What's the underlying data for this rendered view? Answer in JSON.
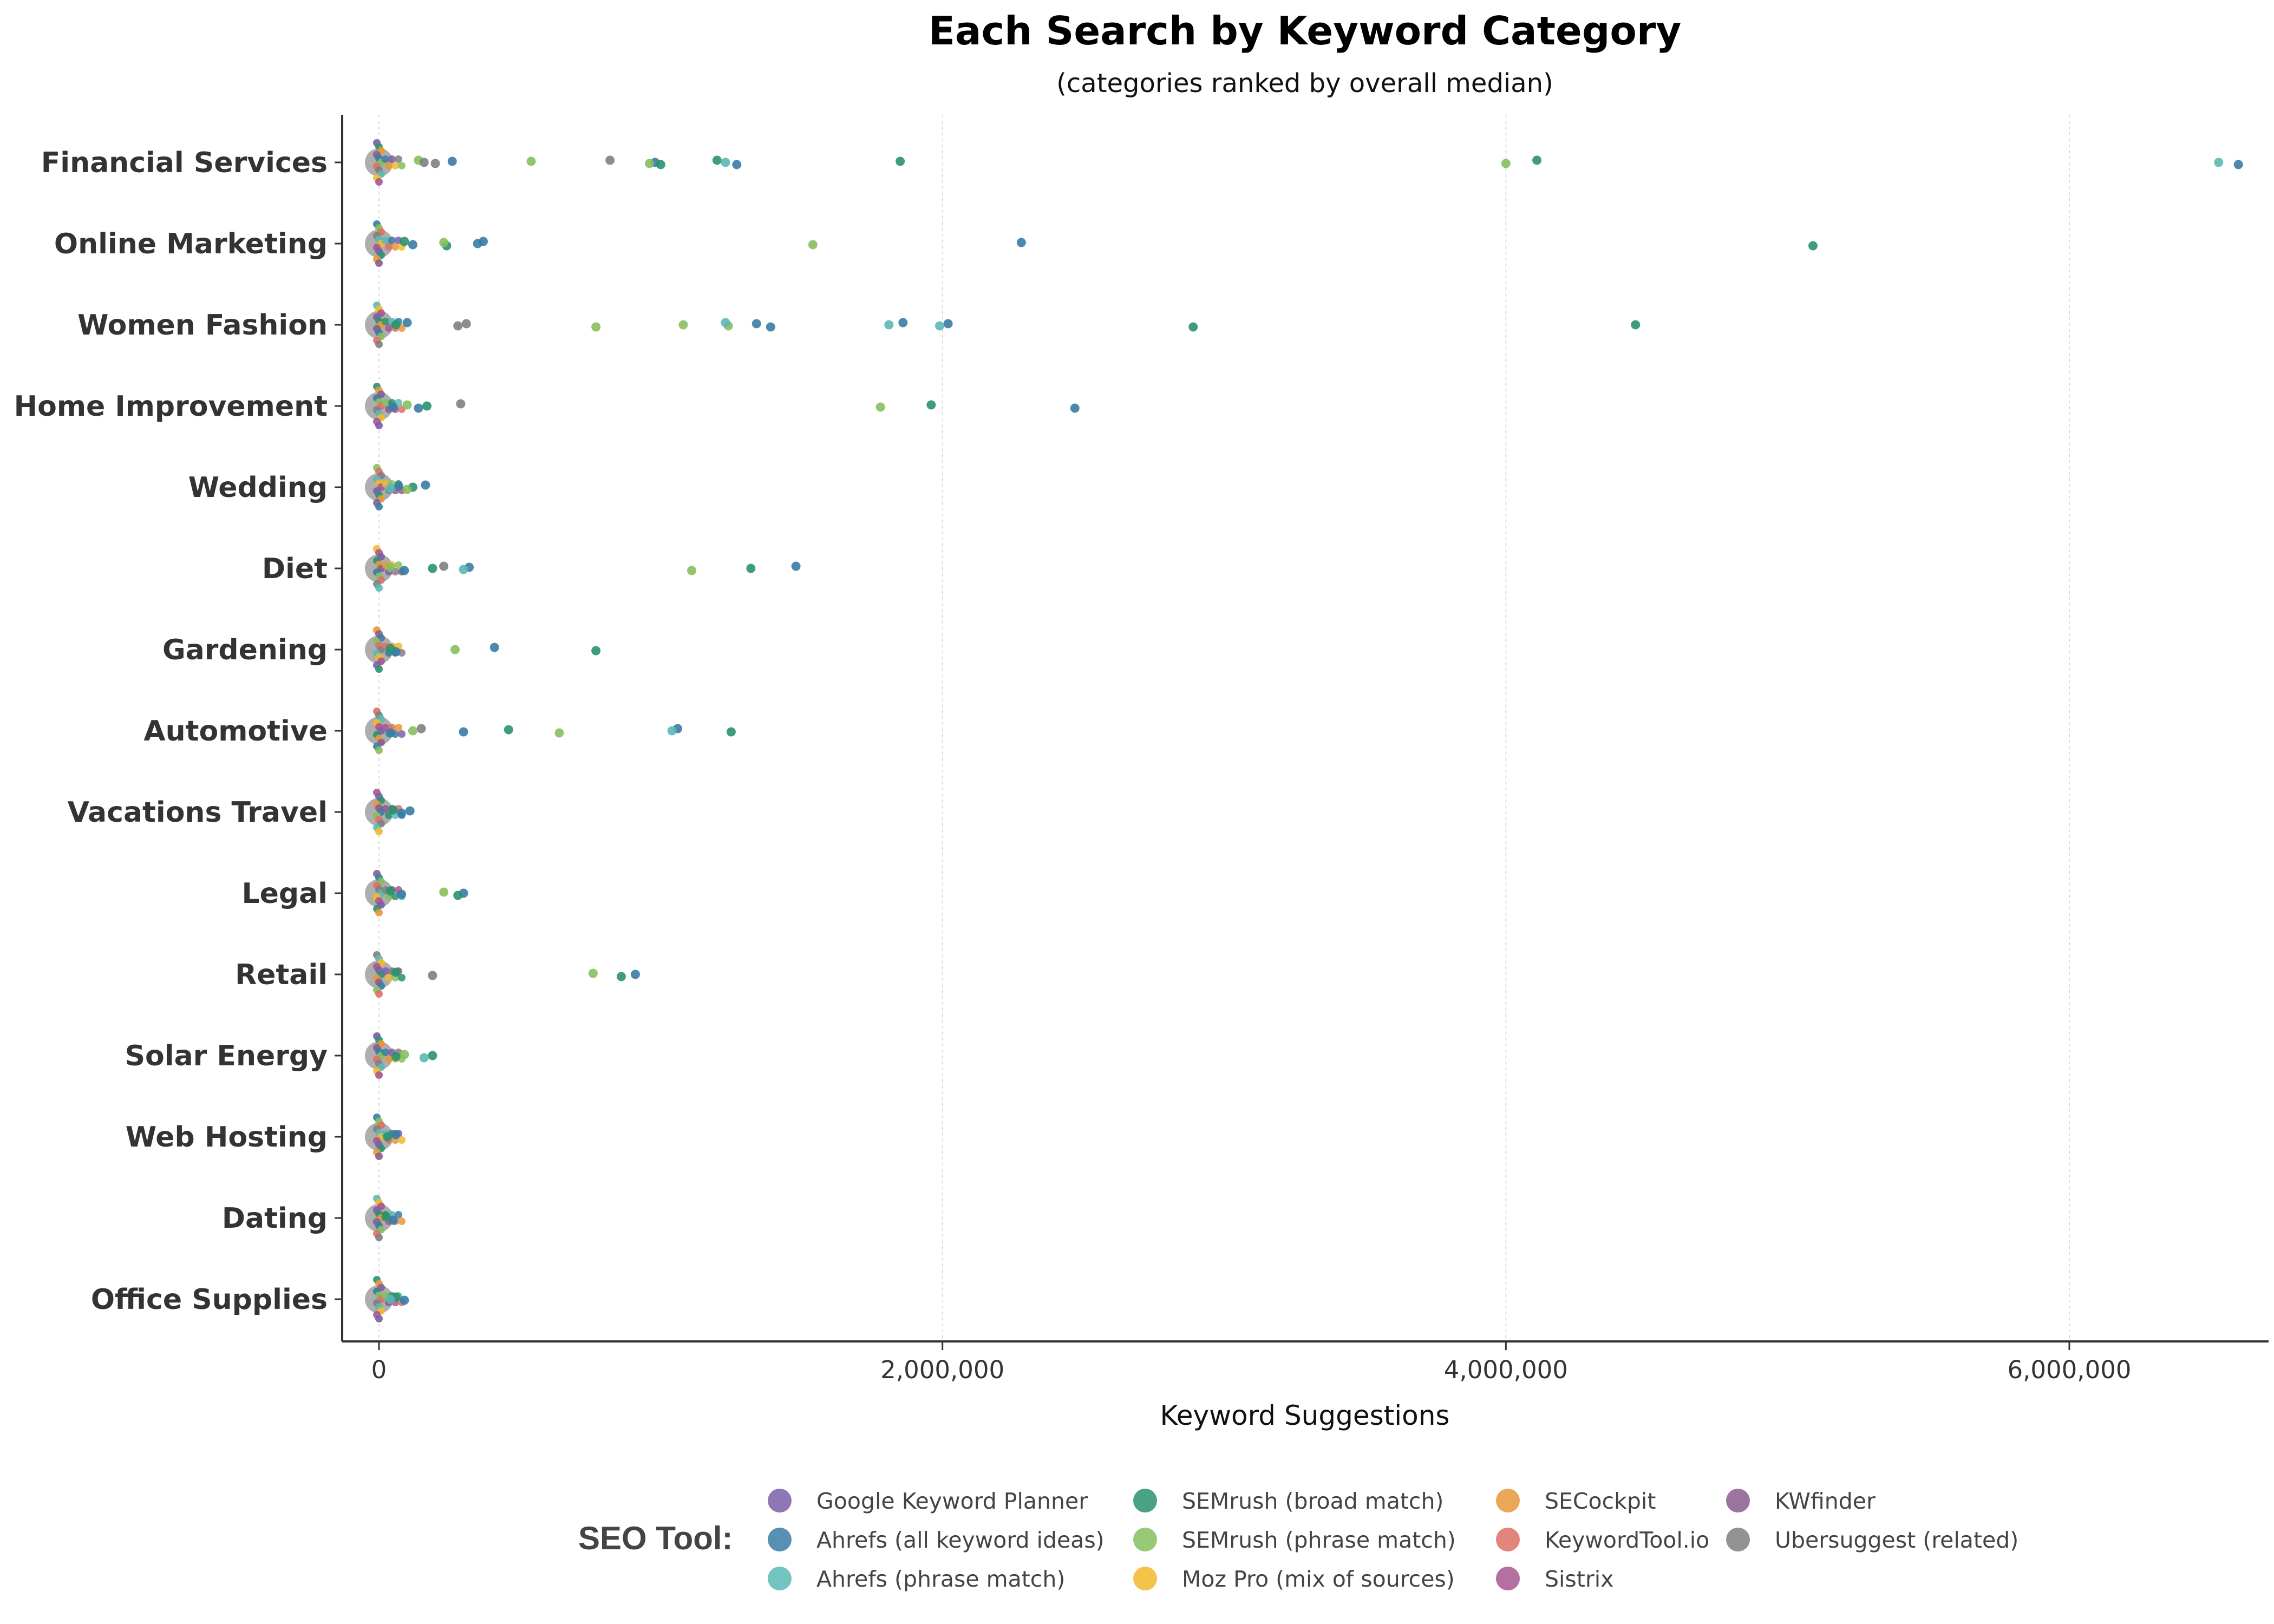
{
  "chart_data": {
    "type": "scatter",
    "title": "Each Search by Keyword Category",
    "subtitle": "(categories ranked by overall median)",
    "xlabel": "Keyword Suggestions",
    "ylabel": "",
    "xlim": [
      -80000,
      6800000
    ],
    "x_ticks": [
      {
        "value": 0,
        "label": "0"
      },
      {
        "value": 2000000,
        "label": "2,000,000"
      },
      {
        "value": 4000000,
        "label": "4,000,000"
      },
      {
        "value": 6000000,
        "label": "6,000,000"
      }
    ],
    "grid": "vertical major lines (dotted)",
    "legend": {
      "title": "SEO Tool:",
      "placement": "bottom",
      "entries": [
        {
          "name": "Google Keyword Planner",
          "color": "#7b5ea7"
        },
        {
          "name": "Ahrefs (all keyword ideas)",
          "color": "#3a7ca5"
        },
        {
          "name": "Ahrefs (phrase match)",
          "color": "#5bb8b5"
        },
        {
          "name": "SEMrush (broad match)",
          "color": "#2a9270"
        },
        {
          "name": "SEMrush (phrase match)",
          "color": "#86bf5e"
        },
        {
          "name": "Moz Pro (mix of sources)",
          "color": "#f2b92b"
        },
        {
          "name": "SECockpit",
          "color": "#e8983b"
        },
        {
          "name": "KeywordTool.io",
          "color": "#dd7166"
        },
        {
          "name": "Sistrix",
          "color": "#a7578f"
        },
        {
          "name": "KWfinder",
          "color": "#8a5d8e"
        },
        {
          "name": "Ubersuggest (related)",
          "color": "#808080"
        }
      ]
    },
    "categories": [
      "Financial Services",
      "Online Marketing",
      "Women Fashion",
      "Home Improvement",
      "Wedding",
      "Diet",
      "Gardening",
      "Automotive",
      "Vacations Travel",
      "Legal",
      "Retail",
      "Solar Energy",
      "Web Hosting",
      "Dating",
      "Office Supplies"
    ],
    "median_marker_color": "#a0a0a0",
    "points": [
      {
        "category": "Financial Services",
        "tool": 10,
        "x": 820000
      },
      {
        "category": "Financial Services",
        "tool": 1,
        "x": 980000
      },
      {
        "category": "Financial Services",
        "tool": 3,
        "x": 1000000
      },
      {
        "category": "Financial Services",
        "tool": 4,
        "x": 540000
      },
      {
        "category": "Financial Services",
        "tool": 4,
        "x": 960000
      },
      {
        "category": "Financial Services",
        "tool": 3,
        "x": 1200000
      },
      {
        "category": "Financial Services",
        "tool": 2,
        "x": 1230000
      },
      {
        "category": "Financial Services",
        "tool": 1,
        "x": 1270000
      },
      {
        "category": "Financial Services",
        "tool": 3,
        "x": 1850000
      },
      {
        "category": "Financial Services",
        "tool": 4,
        "x": 4000000
      },
      {
        "category": "Financial Services",
        "tool": 3,
        "x": 4110000
      },
      {
        "category": "Financial Services",
        "tool": 2,
        "x": 6530000
      },
      {
        "category": "Financial Services",
        "tool": 1,
        "x": 6600000
      },
      {
        "category": "Financial Services",
        "tool": 1,
        "x": 260000
      },
      {
        "category": "Financial Services",
        "tool": 10,
        "x": 200000
      },
      {
        "category": "Financial Services",
        "tool": 4,
        "x": 140000
      },
      {
        "category": "Financial Services",
        "tool": 10,
        "x": 160000
      },
      {
        "category": "Online Marketing",
        "tool": 3,
        "x": 5090000
      },
      {
        "category": "Online Marketing",
        "tool": 1,
        "x": 2280000
      },
      {
        "category": "Online Marketing",
        "tool": 4,
        "x": 1540000
      },
      {
        "category": "Online Marketing",
        "tool": 1,
        "x": 370000
      },
      {
        "category": "Online Marketing",
        "tool": 1,
        "x": 350000
      },
      {
        "category": "Online Marketing",
        "tool": 3,
        "x": 240000
      },
      {
        "category": "Online Marketing",
        "tool": 4,
        "x": 230000
      },
      {
        "category": "Online Marketing",
        "tool": 1,
        "x": 120000
      },
      {
        "category": "Online Marketing",
        "tool": 3,
        "x": 90000
      },
      {
        "category": "Women Fashion",
        "tool": 3,
        "x": 4460000
      },
      {
        "category": "Women Fashion",
        "tool": 3,
        "x": 2890000
      },
      {
        "category": "Women Fashion",
        "tool": 1,
        "x": 2020000
      },
      {
        "category": "Women Fashion",
        "tool": 2,
        "x": 1990000
      },
      {
        "category": "Women Fashion",
        "tool": 1,
        "x": 1860000
      },
      {
        "category": "Women Fashion",
        "tool": 2,
        "x": 1810000
      },
      {
        "category": "Women Fashion",
        "tool": 1,
        "x": 1390000
      },
      {
        "category": "Women Fashion",
        "tool": 1,
        "x": 1340000
      },
      {
        "category": "Women Fashion",
        "tool": 4,
        "x": 1240000
      },
      {
        "category": "Women Fashion",
        "tool": 2,
        "x": 1230000
      },
      {
        "category": "Women Fashion",
        "tool": 4,
        "x": 1080000
      },
      {
        "category": "Women Fashion",
        "tool": 4,
        "x": 770000
      },
      {
        "category": "Women Fashion",
        "tool": 10,
        "x": 310000
      },
      {
        "category": "Women Fashion",
        "tool": 10,
        "x": 280000
      },
      {
        "category": "Women Fashion",
        "tool": 1,
        "x": 100000
      },
      {
        "category": "Women Fashion",
        "tool": 3,
        "x": 60000
      },
      {
        "category": "Home Improvement",
        "tool": 1,
        "x": 2470000
      },
      {
        "category": "Home Improvement",
        "tool": 3,
        "x": 1960000
      },
      {
        "category": "Home Improvement",
        "tool": 4,
        "x": 1780000
      },
      {
        "category": "Home Improvement",
        "tool": 10,
        "x": 290000
      },
      {
        "category": "Home Improvement",
        "tool": 3,
        "x": 170000
      },
      {
        "category": "Home Improvement",
        "tool": 1,
        "x": 140000
      },
      {
        "category": "Home Improvement",
        "tool": 4,
        "x": 100000
      },
      {
        "category": "Home Improvement",
        "tool": 1,
        "x": 50000
      },
      {
        "category": "Wedding",
        "tool": 1,
        "x": 165000
      },
      {
        "category": "Wedding",
        "tool": 3,
        "x": 120000
      },
      {
        "category": "Wedding",
        "tool": 4,
        "x": 100000
      },
      {
        "category": "Wedding",
        "tool": 1,
        "x": 70000
      },
      {
        "category": "Wedding",
        "tool": 2,
        "x": 40000
      },
      {
        "category": "Diet",
        "tool": 1,
        "x": 1480000
      },
      {
        "category": "Diet",
        "tool": 3,
        "x": 1320000
      },
      {
        "category": "Diet",
        "tool": 4,
        "x": 1110000
      },
      {
        "category": "Diet",
        "tool": 1,
        "x": 320000
      },
      {
        "category": "Diet",
        "tool": 2,
        "x": 300000
      },
      {
        "category": "Diet",
        "tool": 10,
        "x": 230000
      },
      {
        "category": "Diet",
        "tool": 3,
        "x": 190000
      },
      {
        "category": "Diet",
        "tool": 1,
        "x": 90000
      },
      {
        "category": "Diet",
        "tool": 4,
        "x": 40000
      },
      {
        "category": "Gardening",
        "tool": 3,
        "x": 770000
      },
      {
        "category": "Gardening",
        "tool": 1,
        "x": 410000
      },
      {
        "category": "Gardening",
        "tool": 4,
        "x": 270000
      },
      {
        "category": "Gardening",
        "tool": 1,
        "x": 60000
      },
      {
        "category": "Gardening",
        "tool": 3,
        "x": 40000
      },
      {
        "category": "Automotive",
        "tool": 3,
        "x": 1250000
      },
      {
        "category": "Automotive",
        "tool": 1,
        "x": 1060000
      },
      {
        "category": "Automotive",
        "tool": 2,
        "x": 1040000
      },
      {
        "category": "Automotive",
        "tool": 4,
        "x": 640000
      },
      {
        "category": "Automotive",
        "tool": 3,
        "x": 460000
      },
      {
        "category": "Automotive",
        "tool": 1,
        "x": 300000
      },
      {
        "category": "Automotive",
        "tool": 10,
        "x": 150000
      },
      {
        "category": "Automotive",
        "tool": 4,
        "x": 120000
      },
      {
        "category": "Automotive",
        "tool": 1,
        "x": 40000
      },
      {
        "category": "Vacations Travel",
        "tool": 1,
        "x": 110000
      },
      {
        "category": "Vacations Travel",
        "tool": 1,
        "x": 80000
      },
      {
        "category": "Vacations Travel",
        "tool": 3,
        "x": 50000
      },
      {
        "category": "Legal",
        "tool": 1,
        "x": 300000
      },
      {
        "category": "Legal",
        "tool": 3,
        "x": 280000
      },
      {
        "category": "Legal",
        "tool": 4,
        "x": 230000
      },
      {
        "category": "Legal",
        "tool": 1,
        "x": 80000
      },
      {
        "category": "Legal",
        "tool": 3,
        "x": 40000
      },
      {
        "category": "Retail",
        "tool": 1,
        "x": 910000
      },
      {
        "category": "Retail",
        "tool": 3,
        "x": 860000
      },
      {
        "category": "Retail",
        "tool": 4,
        "x": 760000
      },
      {
        "category": "Retail",
        "tool": 10,
        "x": 190000
      },
      {
        "category": "Retail",
        "tool": 3,
        "x": 60000
      },
      {
        "category": "Solar Energy",
        "tool": 3,
        "x": 190000
      },
      {
        "category": "Solar Energy",
        "tool": 2,
        "x": 160000
      },
      {
        "category": "Solar Energy",
        "tool": 4,
        "x": 90000
      },
      {
        "category": "Solar Energy",
        "tool": 3,
        "x": 60000
      },
      {
        "category": "Web Hosting",
        "tool": 1,
        "x": 60000
      },
      {
        "category": "Web Hosting",
        "tool": 3,
        "x": 30000
      },
      {
        "category": "Dating",
        "tool": 1,
        "x": 50000
      },
      {
        "category": "Dating",
        "tool": 3,
        "x": 25000
      },
      {
        "category": "Office Supplies",
        "tool": 1,
        "x": 90000
      },
      {
        "category": "Office Supplies",
        "tool": 3,
        "x": 60000
      },
      {
        "category": "Office Supplies",
        "tool": 2,
        "x": 40000
      }
    ]
  }
}
